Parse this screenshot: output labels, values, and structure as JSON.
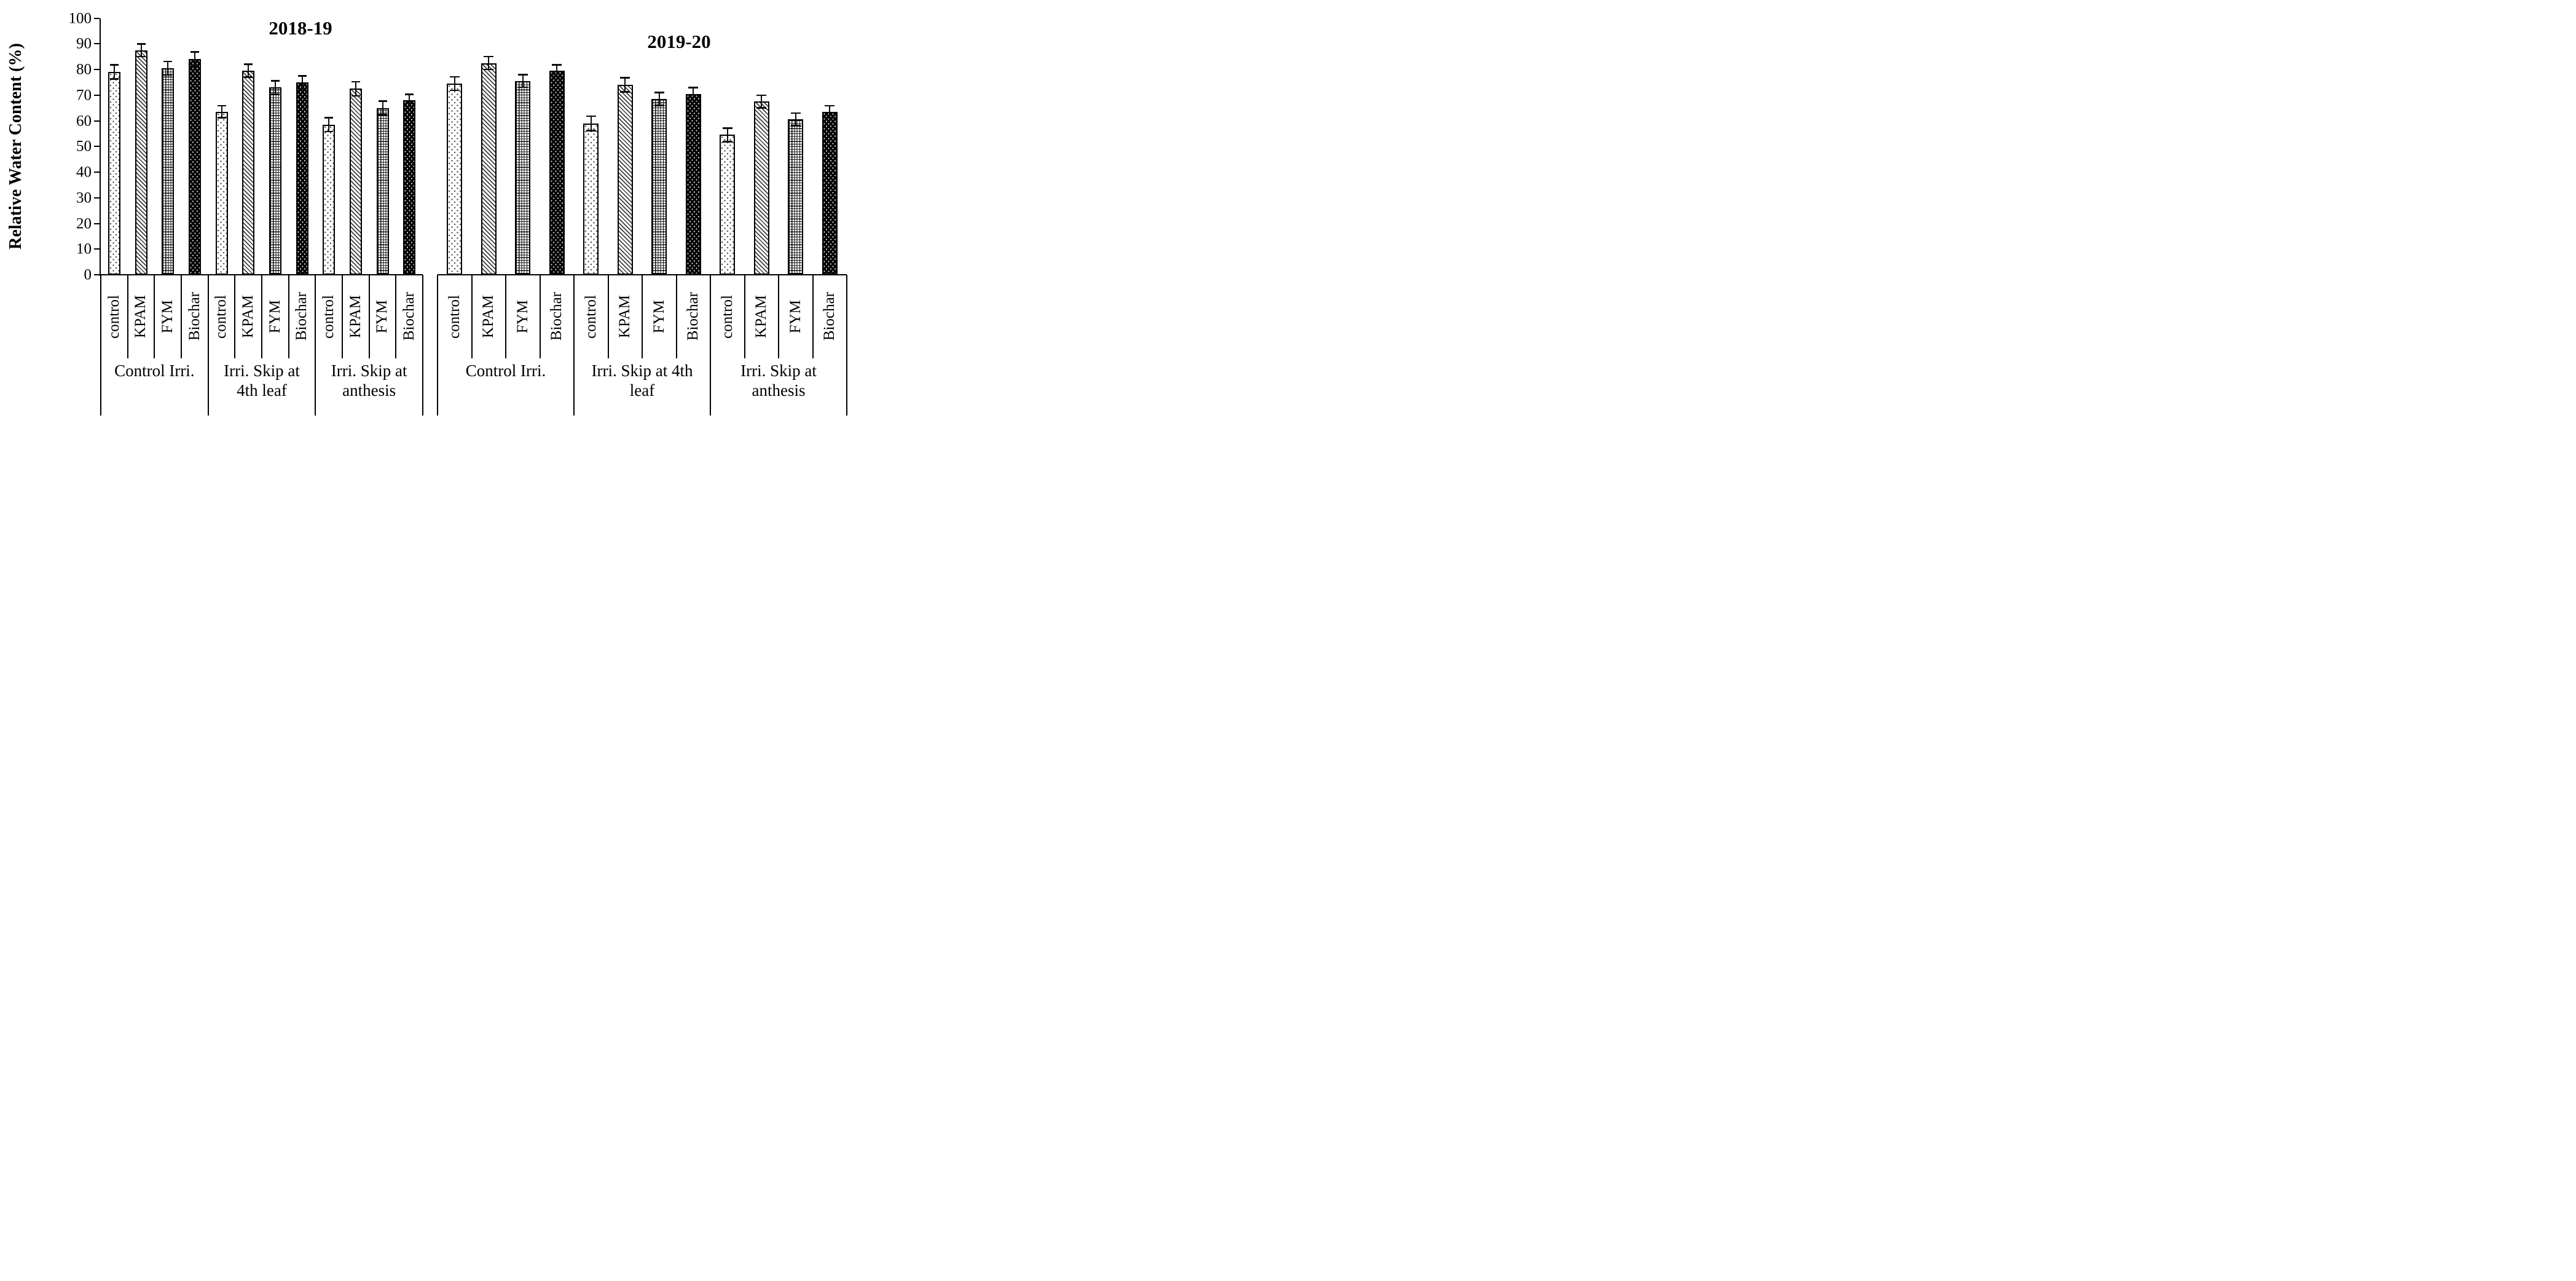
{
  "chart_data": {
    "type": "bar",
    "title": "",
    "ylabel": "Relative Water Content (%)",
    "xlabel": "",
    "ylim": [
      0,
      100
    ],
    "yticks": [
      0,
      10,
      20,
      30,
      40,
      50,
      60,
      70,
      80,
      90,
      100
    ],
    "grid": false,
    "legend": "none",
    "error_bars": true,
    "categories": [
      "control",
      "KPAM",
      "FYM",
      "Biochar"
    ],
    "bar_patterns": {
      "control": "dotted-stipple",
      "KPAM": "diagonal-hatch",
      "FYM": "grid-crosshatch",
      "Biochar": "solid-black-with-white-dots"
    },
    "pattern_class_map": {
      "control": "pat-dots",
      "KPAM": "pat-diag",
      "FYM": "pat-grid",
      "Biochar": "pat-solid"
    },
    "colors": {
      "ink": "#000000",
      "background": "#ffffff"
    },
    "blocks": [
      {
        "year": "2018-19",
        "groups": [
          {
            "label": "Control Irri.",
            "caption_lines": [
              "Control Irri."
            ],
            "series": [
              {
                "name": "control",
                "value": 79.0,
                "error": 2.8
              },
              {
                "name": "KPAM",
                "value": 87.5,
                "error": 2.5
              },
              {
                "name": "FYM",
                "value": 80.5,
                "error": 2.7
              },
              {
                "name": "Biochar",
                "value": 84.0,
                "error": 2.9
              }
            ]
          },
          {
            "label": "Irri. Skip at 4th leaf",
            "caption_lines": [
              "Irri. Skip at",
              "4th leaf"
            ],
            "series": [
              {
                "name": "control",
                "value": 63.5,
                "error": 2.4
              },
              {
                "name": "KPAM",
                "value": 79.5,
                "error": 2.6
              },
              {
                "name": "FYM",
                "value": 73.0,
                "error": 2.6
              },
              {
                "name": "Biochar",
                "value": 75.0,
                "error": 2.6
              }
            ]
          },
          {
            "label": "Irri. Skip at anthesis",
            "caption_lines": [
              "Irri. Skip at",
              "anthesis"
            ],
            "series": [
              {
                "name": "control",
                "value": 58.5,
                "error": 2.8
              },
              {
                "name": "KPAM",
                "value": 72.5,
                "error": 2.8
              },
              {
                "name": "FYM",
                "value": 65.0,
                "error": 2.7
              },
              {
                "name": "Biochar",
                "value": 68.0,
                "error": 2.4
              }
            ]
          }
        ]
      },
      {
        "year": "2019-20",
        "groups": [
          {
            "label": "Control Irri.",
            "caption_lines": [
              "Control Irri."
            ],
            "series": [
              {
                "name": "control",
                "value": 74.5,
                "error": 2.7
              },
              {
                "name": "KPAM",
                "value": 82.5,
                "error": 2.6
              },
              {
                "name": "FYM",
                "value": 75.5,
                "error": 2.5
              },
              {
                "name": "Biochar",
                "value": 79.5,
                "error": 2.3
              }
            ]
          },
          {
            "label": "Irri. Skip at 4th leaf",
            "caption_lines": [
              "Irri. Skip at 4th",
              "leaf"
            ],
            "series": [
              {
                "name": "control",
                "value": 59.0,
                "error": 2.9
              },
              {
                "name": "KPAM",
                "value": 74.0,
                "error": 2.8
              },
              {
                "name": "FYM",
                "value": 68.5,
                "error": 2.6
              },
              {
                "name": "Biochar",
                "value": 70.5,
                "error": 2.5
              }
            ]
          },
          {
            "label": "Irri. Skip at anthesis",
            "caption_lines": [
              "Irri. Skip at",
              "anthesis"
            ],
            "series": [
              {
                "name": "control",
                "value": 54.5,
                "error": 2.7
              },
              {
                "name": "KPAM",
                "value": 67.5,
                "error": 2.5
              },
              {
                "name": "FYM",
                "value": 60.5,
                "error": 2.5
              },
              {
                "name": "Biochar",
                "value": 63.5,
                "error": 2.4
              }
            ]
          }
        ]
      }
    ]
  },
  "layout_text": {
    "y_axis_title": "Relative Water Content (%)"
  }
}
